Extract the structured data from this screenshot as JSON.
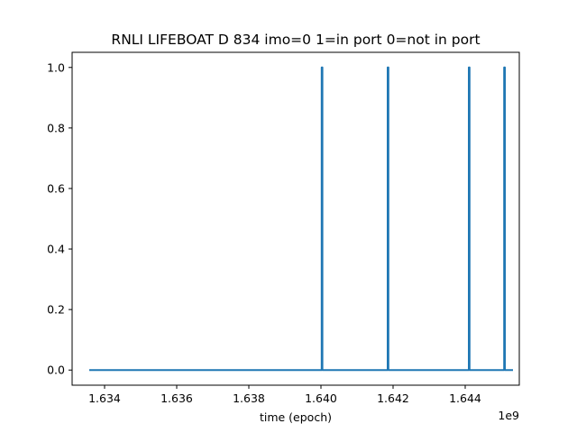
{
  "chart_data": {
    "type": "line",
    "title": "RNLI LIFEBOAT D 834 imo=0 1=in port 0=not in port",
    "xlabel": "time (epoch)",
    "ylabel": "",
    "x_offset_label": "1e9",
    "xlim": [
      1.6331,
      1.6455
    ],
    "ylim": [
      -0.05,
      1.05
    ],
    "x_ticks": [
      1.634,
      1.636,
      1.638,
      1.64,
      1.642,
      1.644
    ],
    "x_tick_labels": [
      "1.634",
      "1.636",
      "1.638",
      "1.640",
      "1.642",
      "1.644"
    ],
    "y_ticks": [
      0.0,
      0.2,
      0.4,
      0.6,
      0.8,
      1.0
    ],
    "y_tick_labels": [
      "0.0",
      "0.2",
      "0.4",
      "0.6",
      "0.8",
      "1.0"
    ],
    "grid": false,
    "series": [
      {
        "color": "#1f77b4",
        "x": [
          1.6336,
          1.64002,
          1.64002,
          1.64004,
          1.64004,
          1.64185,
          1.64185,
          1.64187,
          1.64187,
          1.6441,
          1.6441,
          1.64412,
          1.64412,
          1.64508,
          1.64508,
          1.6451,
          1.6451,
          1.6453
        ],
        "y": [
          0,
          0,
          1,
          1,
          0,
          0,
          1,
          1,
          0,
          0,
          1,
          1,
          0,
          0,
          1,
          1,
          0,
          0
        ]
      }
    ]
  }
}
